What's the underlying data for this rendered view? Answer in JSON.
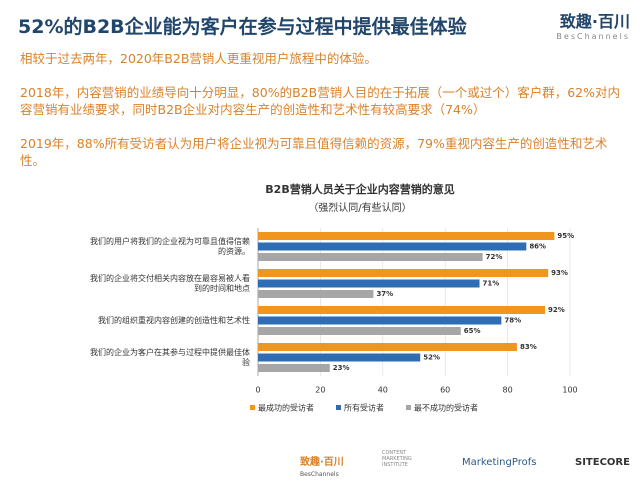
{
  "header": {
    "title": "52%的B2B企业能为客户在参与过程中提供最佳体验",
    "logo": "致趣·百川",
    "logo_sub": "BesChannels"
  },
  "paragraphs": [
    "相较于过去两年，2020年B2B营销人更重视用户旅程中的体验。",
    "2018年，内容营销的业绩导向十分明显，80%的B2B营销人目的在于拓展（一个或过个）客户群，62%对内容营销有业绩要求，同时B2B企业对内容生产的创造性和艺术性有较高要求（74%）",
    "2019年，88%所有受访者认为用户将企业视为可靠且值得信赖的资源，79%重视内容生产的创造性和艺术性。"
  ],
  "chart_data": {
    "type": "bar",
    "orientation": "horizontal",
    "title": "B2B营销人员关于企业内容营销的意见",
    "subtitle": "（强烈认同/有些认同）",
    "categories": [
      "我们的用户将我们的企业视为可靠且值得信赖的资源。",
      "我们的企业将交付相关内容放在最容易被人看到的时间和地点",
      "我们的组织重视内容创建的创造性和艺术性",
      "我们的企业为客户在其参与过程中提供最佳体验"
    ],
    "series": [
      {
        "name": "最成功的受访者",
        "color": "#f0961e",
        "values": [
          95,
          93,
          92,
          83
        ],
        "value_labels": [
          "95%",
          "93%",
          "92%",
          "83%"
        ]
      },
      {
        "name": "所有受访者",
        "color": "#2e6db4",
        "values": [
          86,
          71,
          78,
          52
        ],
        "value_labels": [
          "86%",
          "71%",
          "78%",
          "52%"
        ]
      },
      {
        "name": "最不成功的受访者",
        "color": "#a6a6a6",
        "values": [
          72,
          37,
          65,
          23
        ],
        "value_labels": [
          "72%",
          "37%",
          "65%",
          "23%"
        ]
      }
    ],
    "xlim": [
      0,
      100
    ],
    "xticks": [
      0,
      20,
      40,
      60,
      80,
      100
    ],
    "grid": true
  },
  "footer": {
    "logos": [
      "致趣·百川",
      "BesChannels",
      "CONTENT MARKETING INSTITUTE",
      "MarketingProfs",
      "SITECORE"
    ]
  }
}
